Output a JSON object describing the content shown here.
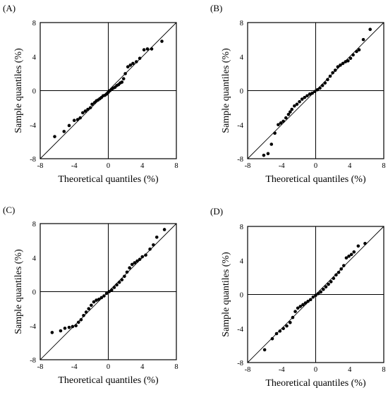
{
  "chart_data": [
    {
      "panel_label": "(A)",
      "type": "scatter",
      "xlabel": "Theoretical quantiles (%)",
      "ylabel": "Sample quantiles (%)",
      "xlim": [
        -8,
        8
      ],
      "ylim": [
        -8,
        8
      ],
      "xticks": [
        "-8",
        "-4",
        "0",
        "4",
        "8"
      ],
      "yticks": [
        "8",
        "4",
        "0",
        "-4",
        "-8"
      ],
      "reference_line": "y = x",
      "grid": false,
      "points": [
        [
          -6.3,
          -5.4
        ],
        [
          -5.2,
          -4.8
        ],
        [
          -4.6,
          -4.1
        ],
        [
          -4.0,
          -3.5
        ],
        [
          -3.6,
          -3.4
        ],
        [
          -3.3,
          -3.2
        ],
        [
          -3.0,
          -2.6
        ],
        [
          -2.7,
          -2.4
        ],
        [
          -2.4,
          -2.2
        ],
        [
          -2.1,
          -2.0
        ],
        [
          -1.9,
          -1.6
        ],
        [
          -1.6,
          -1.4
        ],
        [
          -1.4,
          -1.2
        ],
        [
          -1.2,
          -1.1
        ],
        [
          -1.0,
          -0.95
        ],
        [
          -0.8,
          -0.8
        ],
        [
          -0.6,
          -0.6
        ],
        [
          -0.4,
          -0.55
        ],
        [
          -0.2,
          -0.4
        ],
        [
          0.0,
          -0.2
        ],
        [
          0.2,
          0.0
        ],
        [
          0.4,
          0.15
        ],
        [
          0.6,
          0.3
        ],
        [
          0.8,
          0.4
        ],
        [
          1.0,
          0.6
        ],
        [
          1.2,
          0.7
        ],
        [
          1.4,
          0.9
        ],
        [
          1.6,
          1.0
        ],
        [
          1.8,
          1.4
        ],
        [
          2.0,
          2.0
        ],
        [
          2.3,
          2.8
        ],
        [
          2.6,
          3.0
        ],
        [
          2.9,
          3.2
        ],
        [
          3.3,
          3.4
        ],
        [
          3.7,
          3.8
        ],
        [
          4.2,
          4.8
        ],
        [
          4.6,
          4.9
        ],
        [
          5.1,
          4.9
        ],
        [
          6.3,
          5.8
        ]
      ]
    },
    {
      "panel_label": "(B)",
      "type": "scatter",
      "xlabel": "Theoretical quantiles (%)",
      "ylabel": "Sample quantiles (%)",
      "xlim": [
        -8,
        8
      ],
      "ylim": [
        -8,
        8
      ],
      "xticks": [
        "-8",
        "-4",
        "0",
        "4",
        "8"
      ],
      "yticks": [
        "8",
        "4",
        "0",
        "-4",
        "-8"
      ],
      "reference_line": "y = x",
      "grid": false,
      "points": [
        [
          -6.1,
          -7.6
        ],
        [
          -5.6,
          -7.4
        ],
        [
          -5.2,
          -6.3
        ],
        [
          -4.8,
          -5.0
        ],
        [
          -4.4,
          -4.0
        ],
        [
          -4.1,
          -3.8
        ],
        [
          -3.8,
          -3.6
        ],
        [
          -3.5,
          -3.2
        ],
        [
          -3.2,
          -2.8
        ],
        [
          -3.0,
          -2.5
        ],
        [
          -2.8,
          -2.2
        ],
        [
          -2.5,
          -1.8
        ],
        [
          -2.2,
          -1.6
        ],
        [
          -1.9,
          -1.3
        ],
        [
          -1.6,
          -1.0
        ],
        [
          -1.3,
          -0.8
        ],
        [
          -1.0,
          -0.6
        ],
        [
          -0.7,
          -0.4
        ],
        [
          -0.4,
          -0.3
        ],
        [
          -0.1,
          -0.1
        ],
        [
          0.2,
          0.1
        ],
        [
          0.5,
          0.3
        ],
        [
          0.8,
          0.6
        ],
        [
          1.1,
          0.9
        ],
        [
          1.4,
          1.3
        ],
        [
          1.7,
          1.7
        ],
        [
          2.0,
          2.1
        ],
        [
          2.3,
          2.4
        ],
        [
          2.6,
          2.8
        ],
        [
          2.9,
          3.0
        ],
        [
          3.2,
          3.2
        ],
        [
          3.5,
          3.4
        ],
        [
          3.8,
          3.5
        ],
        [
          4.1,
          3.8
        ],
        [
          4.4,
          4.2
        ],
        [
          4.8,
          4.6
        ],
        [
          5.1,
          4.8
        ],
        [
          5.6,
          6.0
        ],
        [
          6.4,
          7.2
        ]
      ]
    },
    {
      "panel_label": "(C)",
      "type": "scatter",
      "xlabel": "Theoretical quantiles (%)",
      "ylabel": "Sample quantiles (%)",
      "xlim": [
        -8,
        8
      ],
      "ylim": [
        -8,
        8
      ],
      "xticks": [
        "-8",
        "-4",
        "0",
        "4",
        "8"
      ],
      "yticks": [
        "8",
        "4",
        "0",
        "-4",
        "-8"
      ],
      "reference_line": "y = x",
      "grid": false,
      "points": [
        [
          -6.6,
          -4.8
        ],
        [
          -5.6,
          -4.6
        ],
        [
          -5.1,
          -4.3
        ],
        [
          -4.6,
          -4.2
        ],
        [
          -4.2,
          -4.1
        ],
        [
          -3.8,
          -4.0
        ],
        [
          -3.5,
          -3.6
        ],
        [
          -3.2,
          -3.3
        ],
        [
          -2.9,
          -2.8
        ],
        [
          -2.6,
          -2.4
        ],
        [
          -2.3,
          -2.0
        ],
        [
          -2.0,
          -1.6
        ],
        [
          -1.7,
          -1.2
        ],
        [
          -1.4,
          -1.0
        ],
        [
          -1.1,
          -0.9
        ],
        [
          -0.8,
          -0.7
        ],
        [
          -0.5,
          -0.5
        ],
        [
          -0.2,
          -0.2
        ],
        [
          0.1,
          0.0
        ],
        [
          0.4,
          0.2
        ],
        [
          0.7,
          0.5
        ],
        [
          1.0,
          0.8
        ],
        [
          1.3,
          1.1
        ],
        [
          1.6,
          1.4
        ],
        [
          1.9,
          1.8
        ],
        [
          2.2,
          2.3
        ],
        [
          2.5,
          2.8
        ],
        [
          2.8,
          3.2
        ],
        [
          3.1,
          3.4
        ],
        [
          3.4,
          3.6
        ],
        [
          3.7,
          3.8
        ],
        [
          4.0,
          4.1
        ],
        [
          4.4,
          4.3
        ],
        [
          4.9,
          5.0
        ],
        [
          5.3,
          5.5
        ],
        [
          5.7,
          6.4
        ],
        [
          6.6,
          7.3
        ]
      ]
    },
    {
      "panel_label": "(D)",
      "type": "scatter",
      "xlabel": "Theoretical quantiles (%)",
      "ylabel": "Sample quantiles (%)",
      "xlim": [
        -8,
        8
      ],
      "ylim": [
        -8,
        8
      ],
      "xticks": [
        "-8",
        "-4",
        "0",
        "4",
        "8"
      ],
      "yticks": [
        "8",
        "4",
        "0",
        "-4",
        "-8"
      ],
      "reference_line": "y = x",
      "grid": false,
      "points": [
        [
          -6.0,
          -6.5
        ],
        [
          -5.1,
          -5.2
        ],
        [
          -4.6,
          -4.6
        ],
        [
          -4.2,
          -4.3
        ],
        [
          -3.8,
          -4.0
        ],
        [
          -3.4,
          -3.7
        ],
        [
          -3.0,
          -3.3
        ],
        [
          -2.7,
          -2.7
        ],
        [
          -2.4,
          -2.0
        ],
        [
          -2.1,
          -1.6
        ],
        [
          -1.8,
          -1.4
        ],
        [
          -1.5,
          -1.2
        ],
        [
          -1.2,
          -1.0
        ],
        [
          -0.9,
          -0.8
        ],
        [
          -0.6,
          -0.6
        ],
        [
          -0.3,
          -0.3
        ],
        [
          0.0,
          -0.1
        ],
        [
          0.3,
          0.1
        ],
        [
          0.6,
          0.3
        ],
        [
          0.9,
          0.6
        ],
        [
          1.2,
          0.9
        ],
        [
          1.5,
          1.2
        ],
        [
          1.8,
          1.5
        ],
        [
          2.1,
          1.9
        ],
        [
          2.4,
          2.3
        ],
        [
          2.7,
          2.6
        ],
        [
          3.0,
          3.0
        ],
        [
          3.3,
          3.4
        ],
        [
          3.6,
          4.3
        ],
        [
          3.9,
          4.5
        ],
        [
          4.2,
          4.7
        ],
        [
          4.5,
          5.0
        ],
        [
          5.0,
          5.7
        ],
        [
          5.8,
          6.0
        ]
      ]
    }
  ]
}
